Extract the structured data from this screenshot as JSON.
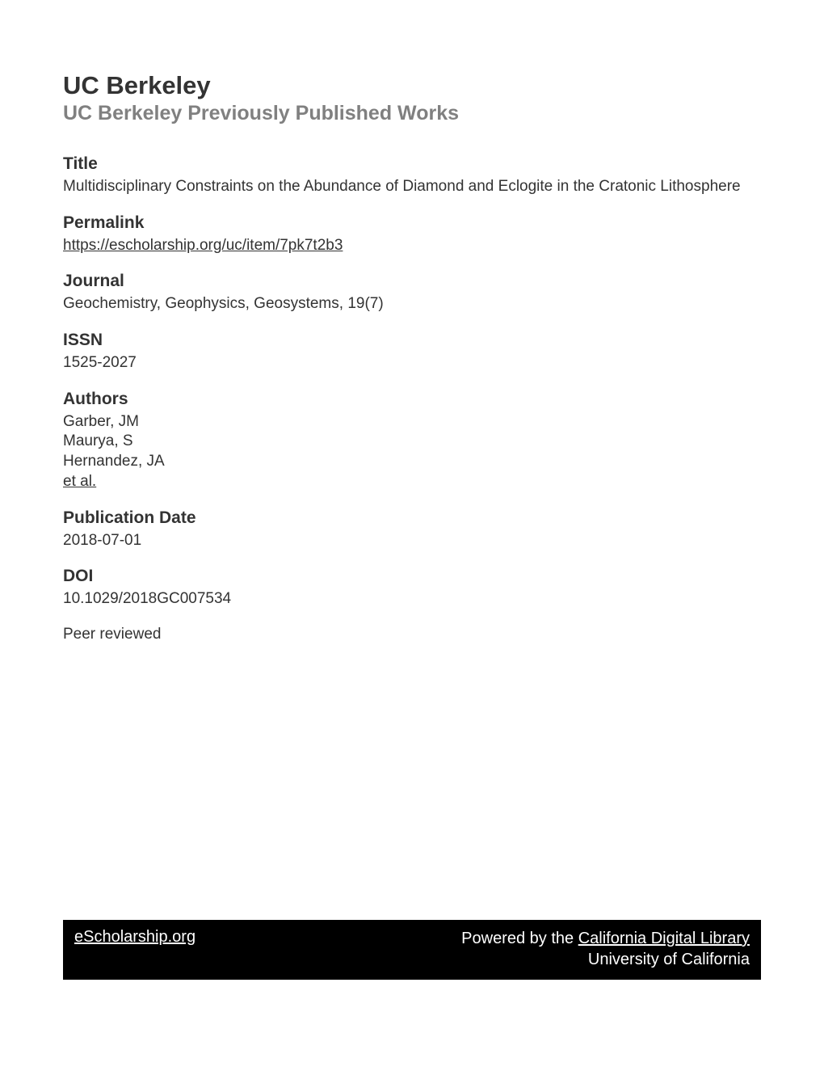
{
  "header": {
    "institution": "UC Berkeley",
    "subtitle": "UC Berkeley Previously Published Works"
  },
  "sections": {
    "title": {
      "label": "Title",
      "value": "Multidisciplinary Constraints on the Abundance of Diamond and Eclogite in the Cratonic Lithosphere"
    },
    "permalink": {
      "label": "Permalink",
      "value": "https://escholarship.org/uc/item/7pk7t2b3"
    },
    "journal": {
      "label": "Journal",
      "value": "Geochemistry, Geophysics, Geosystems, 19(7)"
    },
    "issn": {
      "label": "ISSN",
      "value": "1525-2027"
    },
    "authors": {
      "label": "Authors",
      "list": [
        "Garber, JM",
        "Maurya, S",
        "Hernandez, JA"
      ],
      "more": "et al."
    },
    "pubdate": {
      "label": "Publication Date",
      "value": "2018-07-01"
    },
    "doi": {
      "label": "DOI",
      "value": "10.1029/2018GC007534"
    },
    "peer_reviewed": "Peer reviewed"
  },
  "footer": {
    "site": "eScholarship.org",
    "powered_prefix": "Powered by the ",
    "powered_link": "California Digital Library",
    "org": "University of California"
  },
  "colors": {
    "text_primary": "#333333",
    "text_muted": "#808080",
    "background": "#ffffff",
    "footer_bg": "#000000",
    "footer_text": "#ffffff"
  }
}
